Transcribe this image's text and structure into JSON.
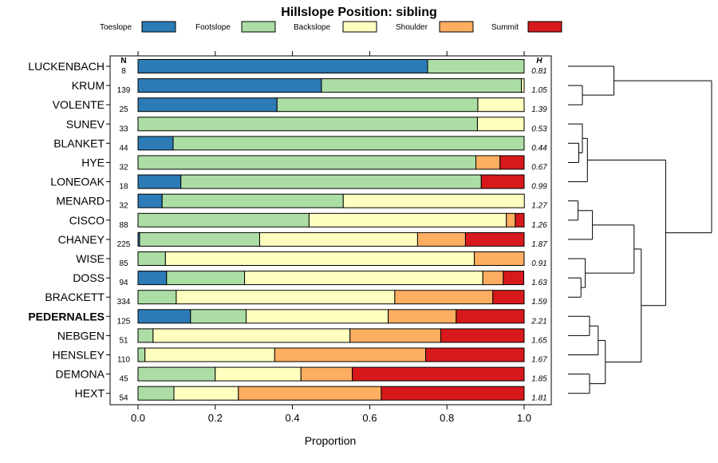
{
  "chart_data": {
    "type": "stacked-bar-horizontal",
    "title": "Hillslope Position: sibling",
    "xlabel": "Proportion",
    "xlim": [
      0,
      1
    ],
    "xticks": [
      0.0,
      0.2,
      0.4,
      0.6,
      0.8,
      1.0
    ],
    "xtick_labels": [
      "0.0",
      "0.2",
      "0.4",
      "0.6",
      "0.8",
      "1.0"
    ],
    "n_header": "N",
    "h_header": "H",
    "legend_position": "top",
    "legend": [
      {
        "name": "Toeslope",
        "color": "#2C7BB6"
      },
      {
        "name": "Footslope",
        "color": "#ABDDA4"
      },
      {
        "name": "Backslope",
        "color": "#FFFFBF"
      },
      {
        "name": "Shoulder",
        "color": "#FDAE61"
      },
      {
        "name": "Summit",
        "color": "#D7191C"
      }
    ],
    "rows": [
      {
        "name": "LUCKENBACH",
        "n": "8",
        "h": "0.81",
        "bold": false,
        "values": [
          0.75,
          0.25,
          0,
          0,
          0
        ]
      },
      {
        "name": "KRUM",
        "n": "139",
        "h": "1.05",
        "bold": false,
        "values": [
          0.475,
          0.518,
          0.007,
          0,
          0
        ]
      },
      {
        "name": "VOLENTE",
        "n": "25",
        "h": "1.39",
        "bold": false,
        "values": [
          0.36,
          0.52,
          0.12,
          0,
          0
        ]
      },
      {
        "name": "SUNEV",
        "n": "33",
        "h": "0.53",
        "bold": false,
        "values": [
          0,
          0.879,
          0.121,
          0,
          0
        ]
      },
      {
        "name": "BLANKET",
        "n": "44",
        "h": "0.44",
        "bold": false,
        "values": [
          0.091,
          0.909,
          0,
          0,
          0
        ]
      },
      {
        "name": "HYE",
        "n": "32",
        "h": "0.67",
        "bold": false,
        "values": [
          0,
          0.875,
          0,
          0.0625,
          0.0625
        ]
      },
      {
        "name": "LONEOAK",
        "n": "18",
        "h": "0.99",
        "bold": false,
        "values": [
          0.111,
          0.778,
          0,
          0,
          0.111
        ]
      },
      {
        "name": "MENARD",
        "n": "32",
        "h": "1.27",
        "bold": false,
        "values": [
          0.0625,
          0.469,
          0.469,
          0,
          0
        ]
      },
      {
        "name": "CISCO",
        "n": "88",
        "h": "1.26",
        "bold": false,
        "values": [
          0,
          0.443,
          0.511,
          0.023,
          0.023
        ]
      },
      {
        "name": "CHANEY",
        "n": "225",
        "h": "1.87",
        "bold": false,
        "values": [
          0.004,
          0.311,
          0.409,
          0.124,
          0.152
        ]
      },
      {
        "name": "WISE",
        "n": "85",
        "h": "0.91",
        "bold": false,
        "values": [
          0,
          0.071,
          0.8,
          0.129,
          0
        ]
      },
      {
        "name": "DOSS",
        "n": "94",
        "h": "1.63",
        "bold": false,
        "values": [
          0.074,
          0.202,
          0.617,
          0.053,
          0.053
        ]
      },
      {
        "name": "BRACKETT",
        "n": "334",
        "h": "1.59",
        "bold": false,
        "values": [
          0,
          0.099,
          0.566,
          0.254,
          0.081
        ]
      },
      {
        "name": "PEDERNALES",
        "n": "125",
        "h": "2.21",
        "bold": true,
        "values": [
          0.136,
          0.144,
          0.368,
          0.176,
          0.176
        ]
      },
      {
        "name": "NEBGEN",
        "n": "51",
        "h": "1.65",
        "bold": false,
        "values": [
          0,
          0.039,
          0.51,
          0.235,
          0.216
        ]
      },
      {
        "name": "HENSLEY",
        "n": "110",
        "h": "1.67",
        "bold": false,
        "values": [
          0,
          0.018,
          0.336,
          0.391,
          0.255
        ]
      },
      {
        "name": "DEMONA",
        "n": "45",
        "h": "1.85",
        "bold": false,
        "values": [
          0,
          0.2,
          0.222,
          0.133,
          0.445
        ]
      },
      {
        "name": "HEXT",
        "n": "54",
        "h": "1.81",
        "bold": false,
        "values": [
          0,
          0.093,
          0.167,
          0.37,
          0.37
        ]
      }
    ],
    "dendrogram": {
      "leaves": [
        "LUCKENBACH",
        "KRUM",
        "VOLENTE",
        "SUNEV",
        "BLANKET",
        "HYE",
        "LONEOAK",
        "MENARD",
        "CISCO",
        "CHANEY",
        "WISE",
        "DOSS",
        "BRACKETT",
        "PEDERNALES",
        "NEBGEN",
        "HENSLEY",
        "DEMONA",
        "HEXT"
      ],
      "merges": [
        {
          "a": [
            "leaf",
            1
          ],
          "b": [
            "leaf",
            2
          ],
          "height": 0.1
        },
        {
          "a": [
            "leaf",
            0
          ],
          "b": [
            "node",
            0
          ],
          "height": 0.32
        },
        {
          "a": [
            "leaf",
            4
          ],
          "b": [
            "leaf",
            5
          ],
          "height": 0.075
        },
        {
          "a": [
            "leaf",
            3
          ],
          "b": [
            "node",
            2
          ],
          "height": 0.1
        },
        {
          "a": [
            "node",
            3
          ],
          "b": [
            "leaf",
            6
          ],
          "height": 0.135
        },
        {
          "a": [
            "leaf",
            7
          ],
          "b": [
            "leaf",
            8
          ],
          "height": 0.07
        },
        {
          "a": [
            "node",
            5
          ],
          "b": [
            "leaf",
            9
          ],
          "height": 0.17
        },
        {
          "a": [
            "leaf",
            11
          ],
          "b": [
            "leaf",
            12
          ],
          "height": 0.09
        },
        {
          "a": [
            "leaf",
            10
          ],
          "b": [
            "node",
            7
          ],
          "height": 0.12
        },
        {
          "a": [
            "node",
            6
          ],
          "b": [
            "node",
            8
          ],
          "height": 0.46
        },
        {
          "a": [
            "leaf",
            13
          ],
          "b": [
            "leaf",
            14
          ],
          "height": 0.15
        },
        {
          "a": [
            "node",
            10
          ],
          "b": [
            "leaf",
            15
          ],
          "height": 0.21
        },
        {
          "a": [
            "leaf",
            16
          ],
          "b": [
            "leaf",
            17
          ],
          "height": 0.15
        },
        {
          "a": [
            "node",
            11
          ],
          "b": [
            "node",
            12
          ],
          "height": 0.26
        },
        {
          "a": [
            "node",
            9
          ],
          "b": [
            "node",
            13
          ],
          "height": 0.51
        },
        {
          "a": [
            "node",
            4
          ],
          "b": [
            "node",
            14
          ],
          "height": 0.68
        },
        {
          "a": [
            "node",
            1
          ],
          "b": [
            "node",
            15
          ],
          "height": 1.0
        }
      ]
    }
  }
}
